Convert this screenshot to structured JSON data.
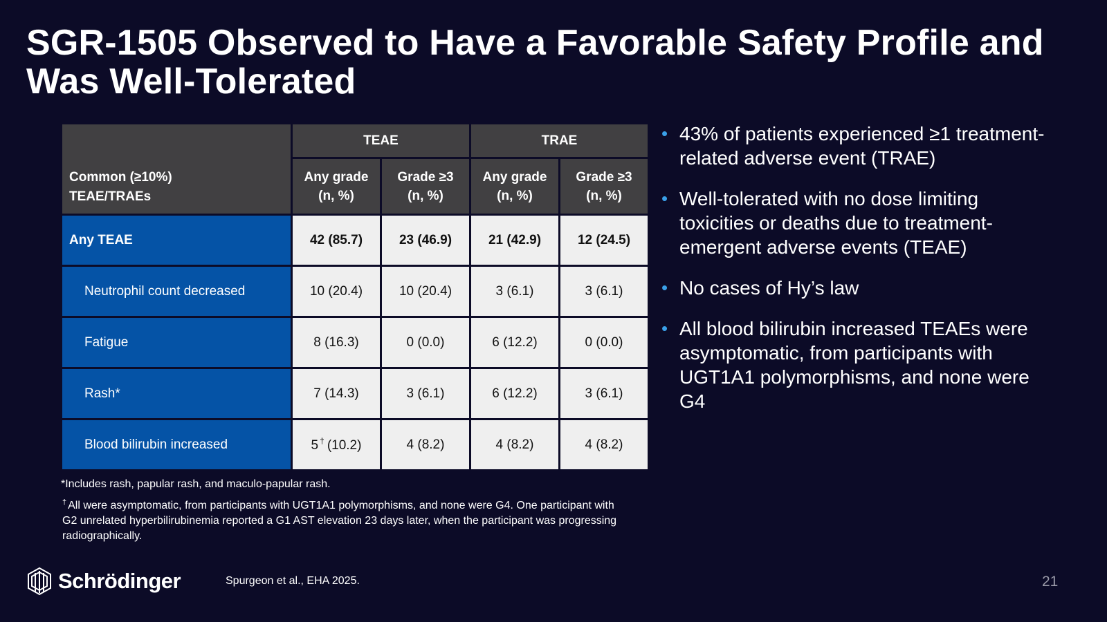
{
  "slide": {
    "title": "SGR-1505 Observed to Have a Favorable Safety Profile and Was Well-Tolerated"
  },
  "table": {
    "corner_label_line1": "Common (≥10%)",
    "corner_label_line2": "TEAE/TRAEs",
    "group_headers": [
      "TEAE",
      "TRAE"
    ],
    "sub_headers": [
      {
        "line1": "Any grade",
        "line2": "(n, %)"
      },
      {
        "line1": "Grade ≥3",
        "line2": "(n, %)"
      },
      {
        "line1": "Any grade",
        "line2": "(n, %)"
      },
      {
        "line1": "Grade ≥3",
        "line2": "(n, %)"
      }
    ],
    "rows": [
      {
        "label": "Any TEAE",
        "cells": [
          "42 (85.7)",
          "23 (46.9)",
          "21 (42.9)",
          "12 (24.5)"
        ]
      },
      {
        "label": "Neutrophil count decreased",
        "cells": [
          "10 (20.4)",
          "10 (20.4)",
          "3 (6.1)",
          "3 (6.1)"
        ]
      },
      {
        "label": "Fatigue",
        "cells": [
          "8 (16.3)",
          "0 (0.0)",
          "6 (12.2)",
          "0 (0.0)"
        ]
      },
      {
        "label": "Rash*",
        "cells": [
          "7 (14.3)",
          "3 (6.1)",
          "6 (12.2)",
          "3 (6.1)"
        ]
      },
      {
        "label": "Blood bilirubin increased",
        "cells": [
          "5",
          "4 (8.2)",
          "4 (8.2)",
          "4 (8.2)"
        ],
        "first_cell_mark": "†",
        "first_cell_suffix": "(10.2)"
      }
    ]
  },
  "footnotes": {
    "rash_note": "*Includes rash, papular rash, and maculo-papular rash.",
    "dagger_mark": "†",
    "dagger_note": "All were asymptomatic, from participants with UGT1A1 polymorphisms, and none were G4. One participant with G2 unrelated hyperbilirubinemia reported a G1 AST elevation 23 days later, when the participant was progressing radiographically."
  },
  "bullets": [
    "43% of patients experienced ≥1 treatment-related adverse event (TRAE)",
    "Well-tolerated with no dose limiting toxicities or deaths due to treatment-emergent adverse events (TEAE)",
    "No cases of Hy’s law",
    "All blood bilirubin increased TEAEs were asymptomatic, from participants with UGT1A1 polymorphisms, and none were G4"
  ],
  "footer": {
    "brand": "Schrödinger",
    "citation": "Spurgeon et al., EHA 2025.",
    "page_number": "21"
  },
  "colors": {
    "background": "#0c0b27",
    "header_gray": "#414042",
    "label_blue": "#0553a6",
    "cell_light": "#efefef",
    "bullet_dot": "#3aa0e8"
  },
  "icons": {
    "logo": "schrodinger-logo-icon"
  }
}
